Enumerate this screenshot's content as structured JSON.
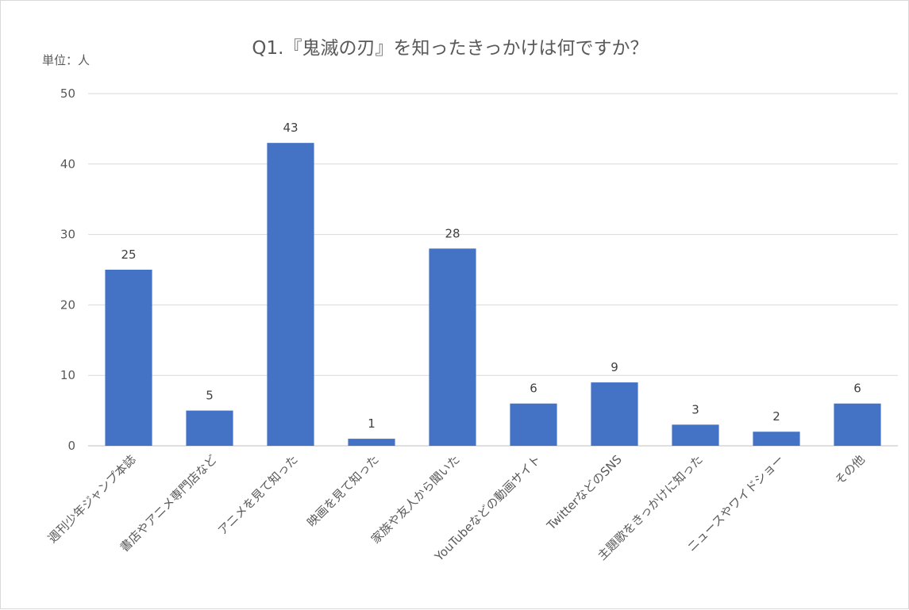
{
  "chart_data": {
    "type": "bar",
    "title": "Q1.『鬼滅の刃』を知ったきっかけは何ですか？",
    "unit_label": "単位：人",
    "categories": [
      "週刊少年ジャンプ本誌",
      "書店やアニメ専門店など",
      "アニメを見て知った",
      "映画を見て知った",
      "家族や友人から聞いた",
      "YouTubeなどの動画サイト",
      "TwitterなどのSNS",
      "主題歌をきっかけに知った",
      "ニュースやワイドショー",
      "その他"
    ],
    "values": [
      25,
      5,
      43,
      1,
      28,
      6,
      9,
      3,
      2,
      6
    ],
    "ylim": [
      0,
      50
    ],
    "yticks": [
      0,
      10,
      20,
      30,
      40,
      50
    ],
    "bar_color": "#4472C4",
    "grid": true,
    "legend": false
  }
}
